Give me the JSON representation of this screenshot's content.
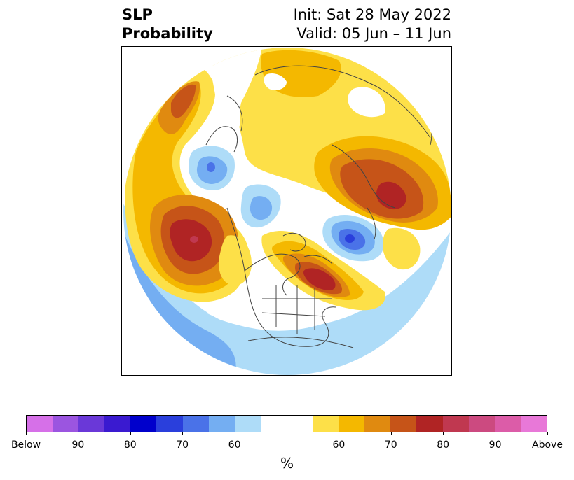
{
  "title": {
    "left_line1": "SLP",
    "left_line2": "Probability",
    "right_line1": "Init: Sat 28 May 2022",
    "right_line2": "Valid: 05 Jun – 11 Jun"
  },
  "colorbar": {
    "colors": [
      "#d670e8",
      "#9b55e0",
      "#6a38d8",
      "#3a1ad0",
      "#0000cc",
      "#2a3fdc",
      "#4a72e8",
      "#74aef2",
      "#aedcf8",
      "#ffffff",
      "#ffffff",
      "#fde048",
      "#f4b800",
      "#e08a10",
      "#c65418",
      "#b02424",
      "#c03850",
      "#cc4a80",
      "#dc5ca8",
      "#e878d8"
    ],
    "tick_labels": [
      "Below",
      "90",
      "80",
      "70",
      "60",
      "60",
      "70",
      "80",
      "90",
      "Above"
    ],
    "unit_label": "%"
  },
  "map": {
    "categories": {
      "above_60_yellow": "#fde048",
      "above_65_gold": "#f4b800",
      "above_70_orange": "#e08a10",
      "above_75_rust": "#c65418",
      "above_80_red": "#b02424",
      "above_85_crimson": "#c03850",
      "below_60_lightblue": "#aedcf8",
      "below_65_skyblue": "#74aef2",
      "below_70_blue": "#4a72e8",
      "below_75_royalblue": "#2a3fdc"
    }
  }
}
